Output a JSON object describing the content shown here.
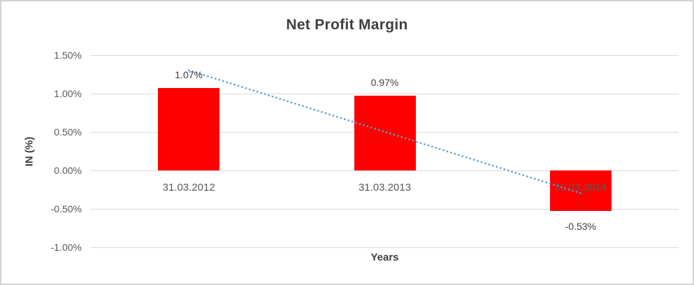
{
  "chart_data": {
    "type": "bar",
    "title": "Net Profit Margin",
    "xlabel": "Years",
    "ylabel": "IN (%)",
    "categories": [
      "31.03.2012",
      "31.03.2013",
      "31.03.2014"
    ],
    "values": [
      1.07,
      0.97,
      -0.53
    ],
    "value_labels": [
      "1.07%",
      "0.97%",
      "-0.53%"
    ],
    "y_ticks": [
      "1.50%",
      "1.00%",
      "0.50%",
      "0.00%",
      "-0.50%",
      "-1.00%"
    ],
    "y_tick_values": [
      1.5,
      1.0,
      0.5,
      0.0,
      -0.5,
      -1.0
    ],
    "ylim": [
      -1.0,
      1.5
    ],
    "grid": true,
    "legend_position": "none",
    "bar_color": "#ff0000",
    "trendline": {
      "type": "linear",
      "style": "dotted",
      "color": "#5b9bd5"
    }
  },
  "colors": {
    "title_text": "#3f3f3f",
    "tick_text": "#595959",
    "data_label_text": "#404040",
    "gridline": "#d9d9d9",
    "frame_border": "#d2d2d2",
    "background": "#ffffff"
  }
}
